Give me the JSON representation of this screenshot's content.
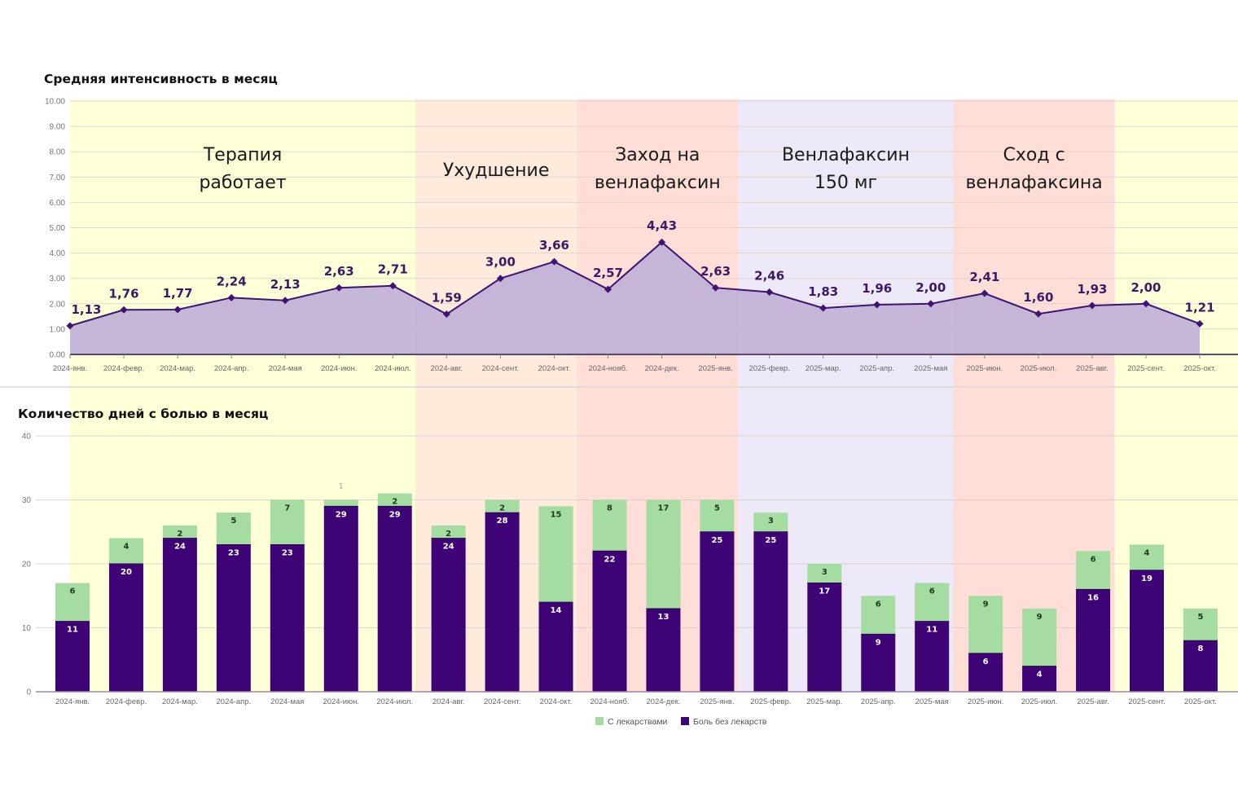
{
  "colors": {
    "band_yellow": "#FFFFD8",
    "band_peach": "#FFEBDC",
    "band_pink": "#FFDED8",
    "band_lavender": "#EEE9F8",
    "area_fill": "#C2B3D8",
    "line": "#3D1470",
    "bar_no_meds": "#3E0476",
    "bar_with_meds": "#A5DCA2"
  },
  "bands": [
    {
      "label_lines": [
        "Терапия",
        "работает"
      ],
      "from_index": -0.5,
      "to_index": 7,
      "color_key": "band_yellow"
    },
    {
      "label_lines": [
        "Ухудшение"
      ],
      "from_index": 7,
      "to_index": 10,
      "color_key": "band_peach"
    },
    {
      "label_lines": [
        "Заход на",
        "венлафаксин"
      ],
      "from_index": 10,
      "to_index": 13,
      "color_key": "band_pink"
    },
    {
      "label_lines": [
        "Венлафаксин",
        "150 мг"
      ],
      "from_index": 13,
      "to_index": 17,
      "color_key": "band_lavender"
    },
    {
      "label_lines": [
        "Сход с",
        "венлафаксина"
      ],
      "from_index": 17,
      "to_index": 20,
      "color_key": "band_pink"
    },
    {
      "label_lines": [],
      "from_index": 20,
      "to_index": 21.7,
      "color_key": "band_yellow"
    }
  ],
  "chart_data": [
    {
      "type": "area",
      "title": "Средняя интенсивность в месяц",
      "xlabel": "",
      "ylabel": "",
      "ylim": [
        0,
        10
      ],
      "yticks": [
        "0.00",
        "1.00",
        "2.00",
        "3.00",
        "4.00",
        "5.00",
        "6.00",
        "7.00",
        "8.00",
        "9.00",
        "10.00"
      ],
      "grid": true,
      "categories": [
        "2024-янв.",
        "2024-февр.",
        "2024-мар.",
        "2024-апр.",
        "2024-мая",
        "2024-июн.",
        "2024-июл.",
        "2024-авг.",
        "2024-сент.",
        "2024-окт.",
        "2024-нояб.",
        "2024-дек.",
        "2025-янв.",
        "2025-февр.",
        "2025-мар.",
        "2025-апр.",
        "2025-мая",
        "2025-июн.",
        "2025-июл.",
        "2025-авг.",
        "2025-сент.",
        "2025-окт."
      ],
      "values": [
        1.13,
        1.76,
        1.77,
        2.24,
        2.13,
        2.63,
        2.71,
        1.59,
        3.0,
        3.66,
        2.57,
        4.43,
        2.63,
        2.46,
        1.83,
        1.96,
        2.0,
        2.41,
        1.6,
        1.93,
        2.0,
        1.21
      ],
      "value_labels": [
        "1,13",
        "1,76",
        "1,77",
        "2,24",
        "2,13",
        "2,63",
        "2,71",
        "1,59",
        "3,00",
        "3,66",
        "2,57",
        "4,43",
        "2,63",
        "2,46",
        "1,83",
        "1,96",
        "2,00",
        "2,41",
        "1,60",
        "1,93",
        "2,00",
        "1,21"
      ]
    },
    {
      "type": "bar",
      "stacked": true,
      "title": "Количество дней с болью в месяц",
      "xlabel": "",
      "ylabel": "",
      "ylim": [
        0,
        40
      ],
      "yticks": [
        "0",
        "10",
        "20",
        "30",
        "40"
      ],
      "grid": true,
      "legend_position": "bottom-center",
      "categories": [
        "2024-янв.",
        "2024-февр.",
        "2024-мар.",
        "2024-апр.",
        "2024-мая",
        "2024-июн.",
        "2024-июл.",
        "2024-авг.",
        "2024-сент.",
        "2024-окт.",
        "2024-нояб.",
        "2024-дек.",
        "2025-янв.",
        "2025-февр.",
        "2025-мар.",
        "2025-апр.",
        "2025-мая",
        "2025-июн.",
        "2025-июл.",
        "2025-авг.",
        "2025-сент.",
        "2025-окт."
      ],
      "series": [
        {
          "name": "Боль без лекарств",
          "color_key": "bar_no_meds",
          "values": [
            11,
            20,
            24,
            23,
            23,
            29,
            29,
            24,
            28,
            14,
            22,
            13,
            25,
            25,
            17,
            9,
            11,
            6,
            4,
            16,
            19,
            8
          ]
        },
        {
          "name": "С лекарствами",
          "color_key": "bar_with_meds",
          "values": [
            6,
            4,
            2,
            5,
            7,
            1,
            2,
            2,
            2,
            15,
            8,
            17,
            5,
            3,
            3,
            6,
            6,
            9,
            9,
            6,
            4,
            5
          ]
        }
      ],
      "legend": [
        "С лекарствами",
        "Боль без лекарств"
      ]
    }
  ]
}
